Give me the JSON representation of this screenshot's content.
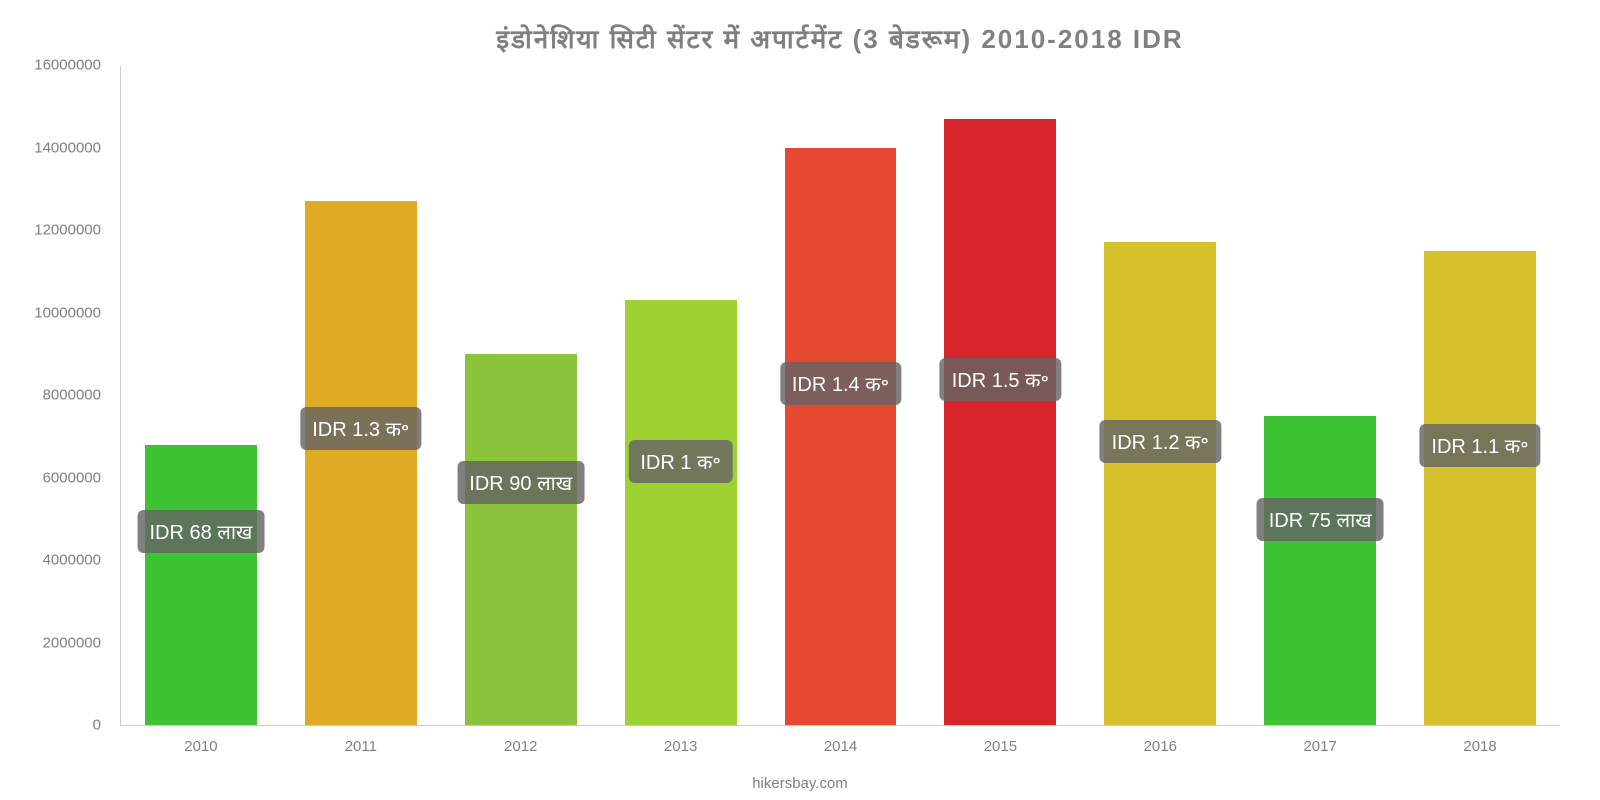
{
  "chart": {
    "type": "bar",
    "title": "इंडोनेशिया   सिटी   सेंटर   में   अपार्टमेंट   (3 बेडरूम) 2010-2018 IDR",
    "title_fontsize": 26,
    "title_color": "#808080",
    "background_color": "#ffffff",
    "axis_color": "#cccccc",
    "tick_color": "#808080",
    "tick_fontsize": 15,
    "ylim": [
      0,
      16000000
    ],
    "ytick_step": 2000000,
    "yticks": [
      {
        "value": 0,
        "label": "0"
      },
      {
        "value": 2000000,
        "label": "2000000"
      },
      {
        "value": 4000000,
        "label": "4000000"
      },
      {
        "value": 6000000,
        "label": "6000000"
      },
      {
        "value": 8000000,
        "label": "8000000"
      },
      {
        "value": 10000000,
        "label": "10000000"
      },
      {
        "value": 12000000,
        "label": "12000000"
      },
      {
        "value": 14000000,
        "label": "14000000"
      },
      {
        "value": 16000000,
        "label": "16000000"
      }
    ],
    "categories": [
      "2010",
      "2011",
      "2012",
      "2013",
      "2014",
      "2015",
      "2016",
      "2017",
      "2018"
    ],
    "values": [
      6800000,
      12700000,
      9000000,
      10300000,
      14000000,
      14700000,
      11700000,
      7500000,
      11500000
    ],
    "bar_colors": [
      "#3dc234",
      "#dfab24",
      "#8bc33a",
      "#9ed232",
      "#e64831",
      "#d6252b",
      "#d4c12c",
      "#3dc234",
      "#d4c12c"
    ],
    "bar_width_ratio": 0.7,
    "data_labels": [
      {
        "text": "IDR 68 लाख",
        "x_idx": 0,
        "y_value": 4600000
      },
      {
        "text": "IDR 1.3 क॰",
        "x_idx": 1,
        "y_value": 7100000
      },
      {
        "text": "IDR 90 लाख",
        "x_idx": 2,
        "y_value": 5800000
      },
      {
        "text": "IDR 1 क॰",
        "x_idx": 3,
        "y_value": 6300000
      },
      {
        "text": "IDR 1.4 क॰",
        "x_idx": 4,
        "y_value": 8200000
      },
      {
        "text": "IDR 1.5 क॰",
        "x_idx": 5,
        "y_value": 8300000
      },
      {
        "text": "IDR 1.2 क॰",
        "x_idx": 6,
        "y_value": 6800000
      },
      {
        "text": "IDR 75 लाख",
        "x_idx": 7,
        "y_value": 4900000
      },
      {
        "text": "IDR 1.1 क॰",
        "x_idx": 8,
        "y_value": 6700000
      }
    ],
    "label_bg": "rgba(100,100,100,0.82)",
    "label_color": "#ffffff",
    "label_fontsize": 20,
    "source": "hikersbay.com"
  }
}
